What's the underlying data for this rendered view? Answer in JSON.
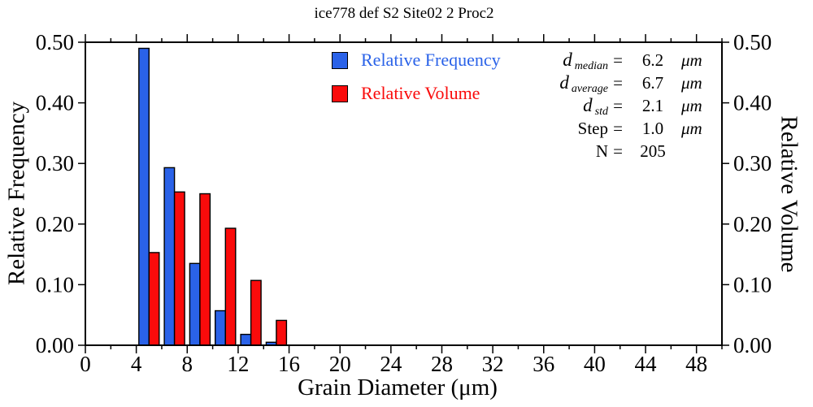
{
  "chart_data": {
    "type": "bar",
    "title": "ice778 def S2 Site02 2 Proc2",
    "xlabel": "Grain Diameter (μm)",
    "ylabel_left": "Relative Frequency",
    "ylabel_right": "Relative Volume",
    "xlim": [
      0,
      50
    ],
    "ylim": [
      0,
      0.5
    ],
    "grid": false,
    "frame": true,
    "tick_direction": "out",
    "legend_position": "inside-top-center",
    "x_major_ticks": [
      0,
      4,
      8,
      12,
      16,
      20,
      24,
      28,
      32,
      36,
      40,
      44,
      48
    ],
    "x_minor_tick_step": 2,
    "y_ticks": [
      {
        "value": 0.0,
        "label": "0.00"
      },
      {
        "value": 0.1,
        "label": "0.10"
      },
      {
        "value": 0.2,
        "label": "0.20"
      },
      {
        "value": 0.3,
        "label": "0.30"
      },
      {
        "value": 0.4,
        "label": "0.40"
      },
      {
        "value": 0.5,
        "label": "0.50"
      }
    ],
    "categories": [
      5,
      7,
      9,
      11,
      13,
      15
    ],
    "bar_half_width": 0.8,
    "series": [
      {
        "name": "Relative Frequency",
        "color": "#2A62E8",
        "values": [
          0.49,
          0.293,
          0.135,
          0.057,
          0.018,
          0.005
        ]
      },
      {
        "name": "Relative Volume",
        "color": "#FA0B0B",
        "values": [
          0.153,
          0.253,
          0.25,
          0.193,
          0.107,
          0.041
        ]
      }
    ]
  },
  "stats": {
    "rows": [
      {
        "label": "d",
        "sub": "median",
        "eq": "=",
        "value": "6.2",
        "unit": "μm"
      },
      {
        "label": "d",
        "sub": "average",
        "eq": "=",
        "value": "6.7",
        "unit": "μm"
      },
      {
        "label": "d",
        "sub": "std",
        "eq": "=",
        "value": "2.1",
        "unit": "μm"
      },
      {
        "label": "Step",
        "sub": "",
        "eq": "=",
        "value": "1.0",
        "unit": "μm"
      },
      {
        "label": "N",
        "sub": "",
        "eq": "=",
        "value": "205",
        "unit": ""
      }
    ]
  }
}
